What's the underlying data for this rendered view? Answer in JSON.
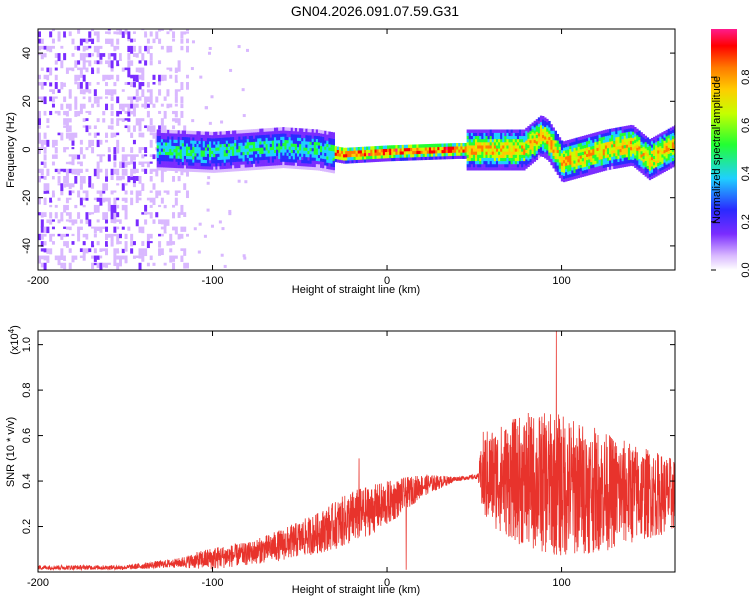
{
  "title": "GN04.2026.091.07.59.G31",
  "chart_data": [
    {
      "type": "heatmap",
      "xlabel": "Height of straight line (km)",
      "ylabel": "Frequency (Hz)",
      "xlim": [
        -200,
        165
      ],
      "ylim": [
        -50,
        50
      ],
      "x_ticks": [
        -200,
        -100,
        0,
        100
      ],
      "y_ticks": [
        -40,
        -20,
        0,
        20,
        40
      ],
      "colorbar": {
        "label": "Normalized spectral amplitude",
        "range": [
          0,
          1
        ],
        "ticks": [
          "0.0",
          "0.2",
          "0.4",
          "0.6",
          "0.8"
        ],
        "colormap": [
          "#ffffff",
          "#d9b8ff",
          "#7a2cff",
          "#2a2aff",
          "#1fd0ff",
          "#22ff33",
          "#c6ff00",
          "#ffcc00",
          "#ff7a00",
          "#ff0000",
          "#ff1b8d"
        ]
      },
      "ridge_center_hz": [
        {
          "x": -130,
          "y": 0
        },
        {
          "x": -100,
          "y": -1
        },
        {
          "x": -80,
          "y": 0
        },
        {
          "x": -60,
          "y": 1
        },
        {
          "x": -40,
          "y": 0
        },
        {
          "x": -25,
          "y": -2
        },
        {
          "x": 0,
          "y": -1
        },
        {
          "x": 40,
          "y": 0
        },
        {
          "x": 60,
          "y": 0
        },
        {
          "x": 78,
          "y": 0
        },
        {
          "x": 88,
          "y": 6
        },
        {
          "x": 92,
          "y": 4
        },
        {
          "x": 100,
          "y": -5
        },
        {
          "x": 110,
          "y": -3
        },
        {
          "x": 125,
          "y": 0
        },
        {
          "x": 140,
          "y": 2
        },
        {
          "x": 150,
          "y": -4
        },
        {
          "x": 165,
          "y": 2
        }
      ]
    },
    {
      "type": "line",
      "xlabel": "Height of straight line (km)",
      "ylabel": "SNR (10 * v/v)",
      "y_scale_note": "(x10^4)",
      "xlim": [
        -200,
        165
      ],
      "ylim": [
        0,
        1.06
      ],
      "x_ticks": [
        -200,
        -100,
        0,
        100
      ],
      "y_ticks": [
        0.2,
        0.4,
        0.6,
        0.8,
        1.0
      ],
      "series": [
        {
          "color": "#e8332c",
          "envelope": [
            {
              "x": -200,
              "mean": 0.02,
              "amp": 0.01
            },
            {
              "x": -150,
              "mean": 0.02,
              "amp": 0.01
            },
            {
              "x": -120,
              "mean": 0.04,
              "amp": 0.02
            },
            {
              "x": -100,
              "mean": 0.06,
              "amp": 0.05
            },
            {
              "x": -80,
              "mean": 0.08,
              "amp": 0.05
            },
            {
              "x": -60,
              "mean": 0.12,
              "amp": 0.07
            },
            {
              "x": -40,
              "mean": 0.17,
              "amp": 0.09
            },
            {
              "x": -20,
              "mean": 0.24,
              "amp": 0.12
            },
            {
              "x": 0,
              "mean": 0.3,
              "amp": 0.1
            },
            {
              "x": 20,
              "mean": 0.38,
              "amp": 0.05
            },
            {
              "x": 40,
              "mean": 0.41,
              "amp": 0.01
            },
            {
              "x": 52,
              "mean": 0.42,
              "amp": 0.01
            },
            {
              "x": 55,
              "mean": 0.42,
              "amp": 0.2
            },
            {
              "x": 80,
              "mean": 0.4,
              "amp": 0.3
            },
            {
              "x": 100,
              "mean": 0.38,
              "amp": 0.32
            },
            {
              "x": 130,
              "mean": 0.35,
              "amp": 0.25
            },
            {
              "x": 165,
              "mean": 0.34,
              "amp": 0.16
            }
          ],
          "peaks": [
            {
              "x": -16,
              "y": 0.5
            },
            {
              "x": 11,
              "y": 0.01
            },
            {
              "x": 97,
              "y": 1.06
            }
          ]
        }
      ]
    }
  ]
}
